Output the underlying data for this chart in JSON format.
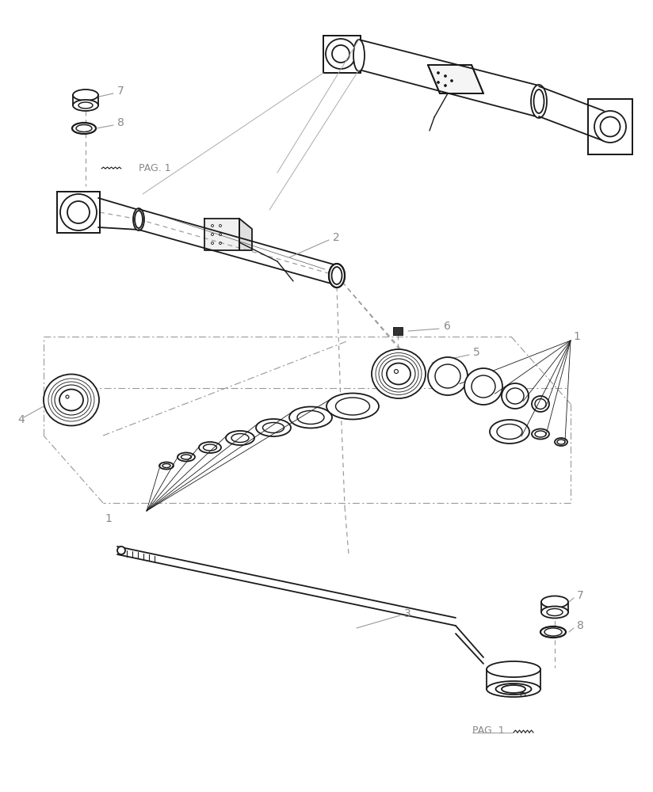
{
  "bg_color": "#ffffff",
  "line_color": "#1a1a1a",
  "label_color": "#888888",
  "dashed_color": "#999999",
  "figsize": [
    8.24,
    10.0
  ],
  "dpi": 100
}
